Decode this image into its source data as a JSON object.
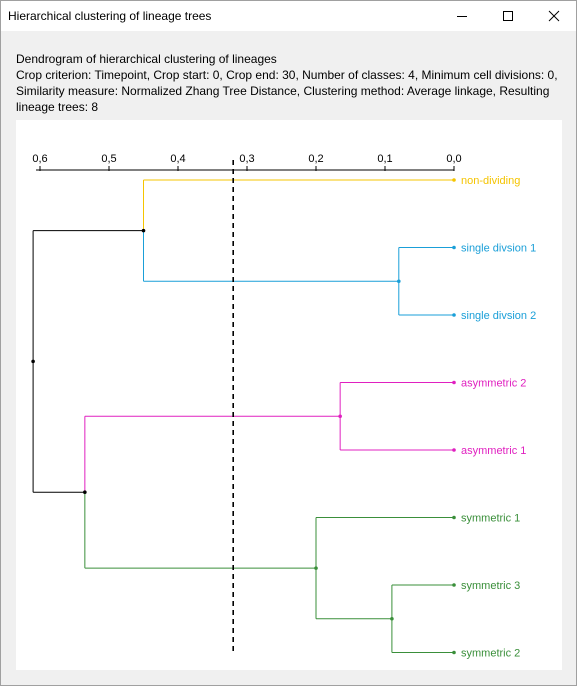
{
  "window": {
    "title": "Hierarchical clustering of lineage trees"
  },
  "info": {
    "line1": "Dendrogram of hierarchical clustering of lineages",
    "line2": "Crop criterion: Timepoint, Crop start: 0, Crop end: 30, Number of classes: 4, Minimum cell divisions: 0,",
    "line3": "Similarity measure: Normalized Zhang Tree Distance, Clustering method: Average linkage, Resulting",
    "line4": "lineage trees: 8"
  },
  "chart_data": {
    "type": "dendrogram",
    "axis_ticks": [
      "0,6",
      "0,5",
      "0,4",
      "0,3",
      "0,2",
      "0,1",
      "0,0"
    ],
    "axis_tick_values": [
      0.6,
      0.5,
      0.4,
      0.3,
      0.2,
      0.1,
      0.0
    ],
    "xlim": [
      0.6,
      0.0
    ],
    "cut_threshold": 0.32,
    "leaves": [
      {
        "label": "non-dividing",
        "color": "#f5c400"
      },
      {
        "label": "single divsion 1",
        "color": "#1a9fd8"
      },
      {
        "label": "single divsion 2",
        "color": "#1a9fd8"
      },
      {
        "label": "asymmetric 2",
        "color": "#e020c0"
      },
      {
        "label": "asymmetric 1",
        "color": "#e020c0"
      },
      {
        "label": "symmetric 1",
        "color": "#3a8f3a"
      },
      {
        "label": "symmetric 3",
        "color": "#3a8f3a"
      },
      {
        "label": "symmetric 2",
        "color": "#3a8f3a"
      }
    ],
    "merges": [
      {
        "a": "single divsion 1",
        "b": "single divsion 2",
        "height": 0.08,
        "color": "#1a9fd8"
      },
      {
        "a": "non-dividing",
        "b": "cluster(single divsion 1, single divsion 2)",
        "height": 0.45,
        "color": "#f5c400"
      },
      {
        "a": "asymmetric 2",
        "b": "asymmetric 1",
        "height": 0.165,
        "color": "#e020c0"
      },
      {
        "a": "symmetric 3",
        "b": "symmetric 2",
        "height": 0.09,
        "color": "#3a8f3a"
      },
      {
        "a": "symmetric 1",
        "b": "cluster(symmetric 3, symmetric 2)",
        "height": 0.2,
        "color": "#3a8f3a"
      },
      {
        "a": "cluster(asymmetric)",
        "b": "cluster(symmetric)",
        "height": 0.535,
        "color": "#e020c0"
      },
      {
        "a": "cluster(non-dividing, single)",
        "b": "cluster(asymmetric, symmetric)",
        "height": 0.61,
        "color": "#000000"
      }
    ]
  }
}
